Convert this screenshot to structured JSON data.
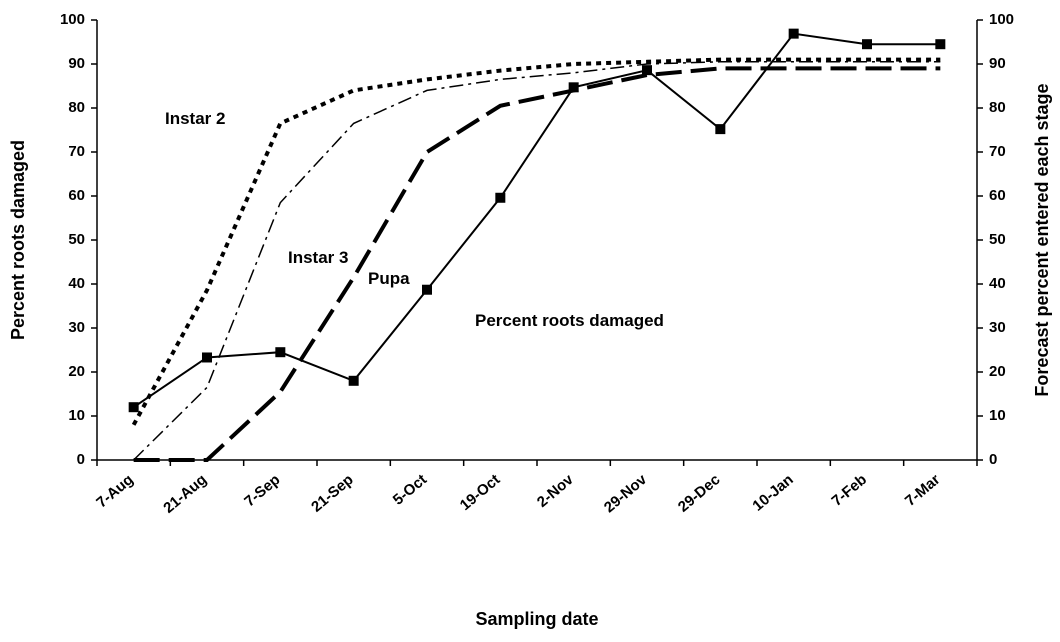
{
  "chart_data": {
    "type": "line",
    "xlabel": "Sampling date",
    "ylabel": "Percent roots damaged",
    "y2label": "Forecast percent entered each stage",
    "categories": [
      "7-Aug",
      "21-Aug",
      "7-Sep",
      "21-Sep",
      "5-Oct",
      "19-Oct",
      "2-Nov",
      "29-Nov",
      "29-Dec",
      "10-Jan",
      "7-Feb",
      "7-Mar"
    ],
    "ylim": [
      0,
      100
    ],
    "yticks": [
      0,
      10,
      20,
      30,
      40,
      50,
      60,
      70,
      80,
      90,
      100
    ],
    "y2lim": [
      0,
      100
    ],
    "y2ticks": [
      0,
      10,
      20,
      30,
      40,
      50,
      60,
      70,
      80,
      90,
      100
    ],
    "series": [
      {
        "name": "Percent roots damaged",
        "color": "#000000",
        "dash": "solid",
        "marker": "square",
        "values": [
          12,
          23.3,
          24.5,
          18,
          38.7,
          59.6,
          84.7,
          88.6,
          75.2,
          96.9,
          94.5,
          94.5
        ]
      },
      {
        "name": "Instar 2",
        "color": "#000000",
        "dash": "dot",
        "axis": "y2",
        "values": [
          8,
          38.6,
          76.5,
          84,
          86.5,
          88.5,
          90,
          90.5,
          91,
          91,
          91,
          91
        ]
      },
      {
        "name": "Instar 3",
        "color": "#000000",
        "dash": "dashdot",
        "axis": "y2",
        "values": [
          0,
          16.5,
          58.5,
          76.5,
          84,
          86.5,
          88,
          90,
          90.5,
          90.5,
          90.5,
          90.5
        ]
      },
      {
        "name": "Pupa",
        "color": "#000000",
        "dash": "longdash",
        "axis": "y2",
        "values": [
          0,
          0,
          15.5,
          41.5,
          70,
          80.5,
          84,
          87.5,
          89,
          89,
          89,
          89
        ]
      }
    ]
  }
}
